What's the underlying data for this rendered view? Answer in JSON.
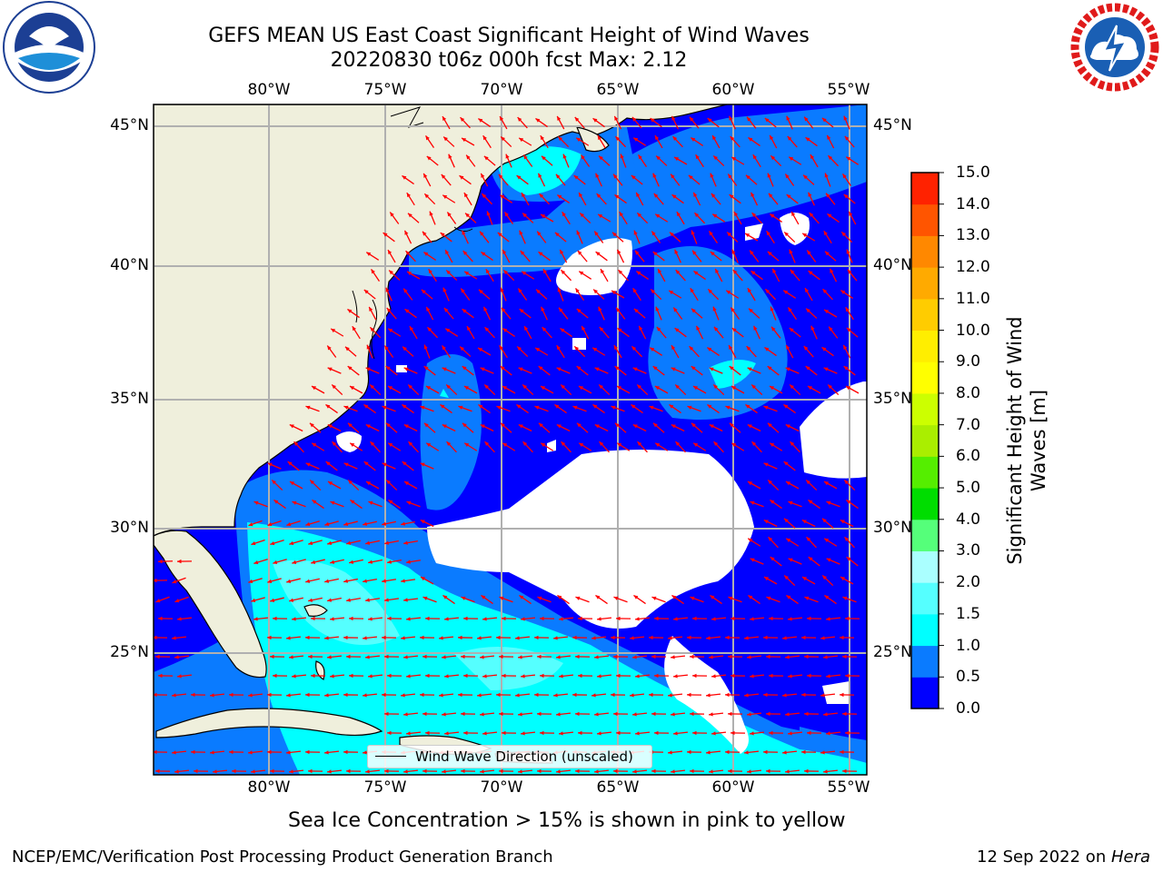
{
  "header": {
    "title_line1": "GEFS MEAN US East Coast Significant Height of Wind Waves",
    "title_line2": "20220830 t06z 000h fcst   Max: 2.12"
  },
  "logos": {
    "left": "noaa-logo-icon",
    "right": "national-weather-service-logo-icon"
  },
  "map": {
    "lon_ticks": [
      "80°W",
      "75°W",
      "70°W",
      "65°W",
      "60°W",
      "55°W"
    ],
    "lat_ticks": [
      "45°N",
      "40°N",
      "35°N",
      "30°N",
      "25°N"
    ],
    "colors": {
      "land": "#efefdc",
      "ocean_0_05": "#0000ff",
      "ocean_05_10": "#0a7bff",
      "ocean_10_15": "#00ffff",
      "ocean_15_20": "#55ffff",
      "no_data": "#ffffff",
      "arrow": "#ff0000"
    },
    "legend_label": "Wind Wave Direction (unscaled)"
  },
  "colorbar": {
    "title": "Significant Height of Wind Waves [m]",
    "labels": [
      "15.0",
      "14.0",
      "13.0",
      "12.0",
      "11.0",
      "10.0",
      "9.0",
      "8.0",
      "7.0",
      "6.0",
      "5.0",
      "4.0",
      "3.0",
      "2.0",
      "1.5",
      "1.0",
      "0.5",
      "0.0"
    ],
    "colors_bottom_to_top": [
      "#0000ff",
      "#0a7bff",
      "#00ffff",
      "#55ffff",
      "#aaffff",
      "#55ff7a",
      "#00dd00",
      "#55ee00",
      "#aaee00",
      "#ccff00",
      "#ffff00",
      "#ffee00",
      "#ffcc00",
      "#ffaa00",
      "#ff8800",
      "#ff5500",
      "#ff2200"
    ]
  },
  "footer": {
    "sea_ice_note": "Sea Ice Concentration > 15% is shown in pink to yellow",
    "credit_left": "NCEP/EMC/Verification Post Processing Product Generation Branch",
    "credit_date": "12 Sep 2022 on ",
    "credit_host": "Hera"
  }
}
